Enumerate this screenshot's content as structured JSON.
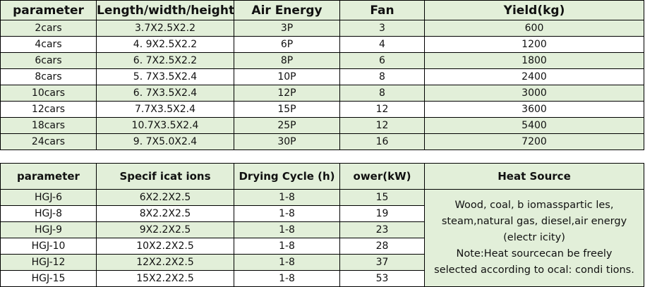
{
  "table1": {
    "headers": [
      "parameter",
      "Length/width/height",
      "Air Energy",
      "Fan",
      "Yield(kg)"
    ],
    "rows": [
      [
        "2cars",
        "3.7X2.5X2.2",
        "3P",
        "3",
        "600"
      ],
      [
        "4cars",
        "4. 9X2.5X2.2",
        "6P",
        "4",
        "1200"
      ],
      [
        "6cars",
        "6. 7X2.5X2.2",
        "8P",
        "6",
        "1800"
      ],
      [
        "8cars",
        "5. 7X3.5X2.4",
        "10P",
        "8",
        "2400"
      ],
      [
        "10cars",
        "6. 7X3.5X2.4",
        "12P",
        "8",
        "3000"
      ],
      [
        "12cars",
        "7.7X3.5X2.4",
        "15P",
        "12",
        "3600"
      ],
      [
        "18cars",
        "10.7X3.5X2.4",
        "25P",
        "12",
        "5400"
      ],
      [
        "24cars",
        "9. 7X5.0X2.4",
        "30P",
        "16",
        "7200"
      ]
    ]
  },
  "table2": {
    "headers": [
      "parameter",
      "Specif icat ions",
      "Drying Cycle (h)",
      "ower(kW)",
      "Heat Source"
    ],
    "rows": [
      [
        "HGJ-6",
        "6X2.2X2.5",
        "1-8",
        "15"
      ],
      [
        "HGJ-8",
        "8X2.2X2.5",
        "1-8",
        "19"
      ],
      [
        "HGJ-9",
        "9X2.2X2.5",
        "1-8",
        "23"
      ],
      [
        "HGJ-10",
        "10X2.2X2.5",
        "1-8",
        "28"
      ],
      [
        "HGJ-12",
        "12X2.2X2.5",
        "1-8",
        "37"
      ],
      [
        "HGJ-15",
        "15X2.2X2.5",
        "1-8",
        "53"
      ]
    ],
    "heat_source_lines": [
      "Wood, coal, b iomasspartic les,",
      "steam,natural gas, diesel,air energy",
      "(electr icity)",
      "Note:Heat sourcecan be freely",
      "selected according to ocal: condi tions."
    ]
  },
  "colors": {
    "row_fill": "#e2efd9",
    "border": "#000000"
  }
}
